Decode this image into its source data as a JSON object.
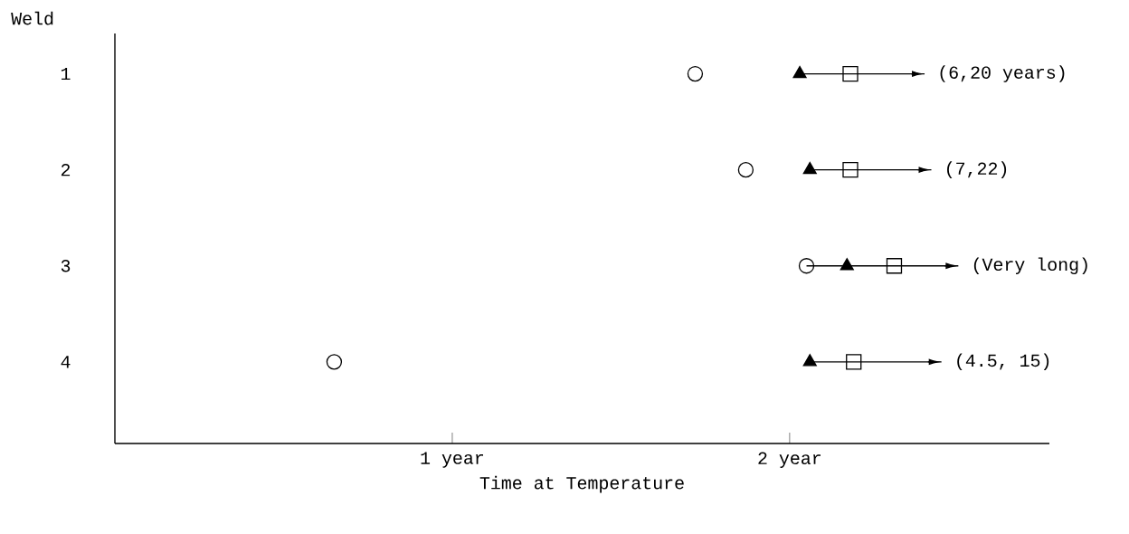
{
  "chart_data": {
    "type": "scatter",
    "orientation": "horizontal",
    "ylabel": "Weld",
    "xlabel": "Time at Temperature",
    "categories": [
      "1",
      "2",
      "3",
      "4"
    ],
    "series": [
      {
        "color": "#000000",
        "marker": "circle",
        "values": [
          1.72,
          1.87,
          2.05,
          0.65
        ]
      },
      {
        "color": "#000000",
        "marker": "triangle",
        "values": [
          2.03,
          2.06,
          2.17,
          2.06
        ]
      },
      {
        "color": "#000000",
        "marker": "square",
        "values": [
          2.18,
          2.18,
          2.31,
          2.19
        ],
        "errors": [
          [
            2.03,
            2.4
          ],
          [
            2.06,
            2.42
          ],
          [
            2.05,
            2.5
          ],
          [
            2.06,
            2.45
          ]
        ]
      }
    ],
    "xlim": [
      0,
      2.77
    ],
    "xticks": [
      {
        "value": 1,
        "label": "1 year"
      },
      {
        "value": 2,
        "label": "2 year"
      }
    ],
    "annotations": [
      "(6,20 years)",
      "(7,22)",
      "(Very long)",
      "(4.5, 15)"
    ],
    "grid": false
  }
}
